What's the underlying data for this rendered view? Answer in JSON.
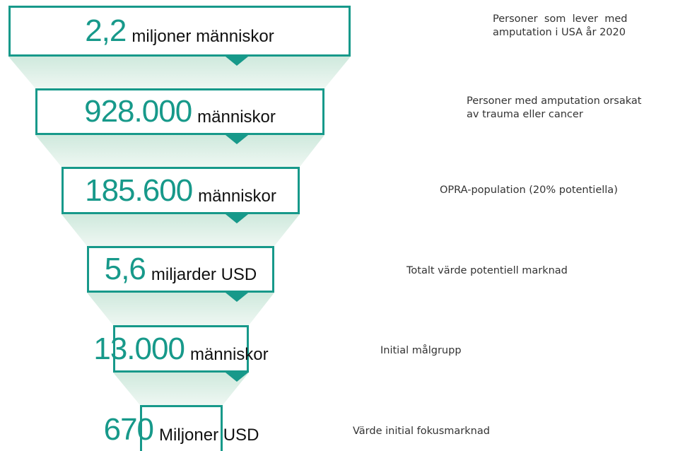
{
  "levels": [
    {
      "number": "2,2",
      "unit": "miljoner människor",
      "description": [
        "Personer  som  lever  med",
        "amputation i USA år 2020"
      ]
    },
    {
      "number": "928.000",
      "unit": "människor",
      "description": [
        "Personer med amputation orsakat",
        "av trauma eller cancer"
      ]
    },
    {
      "number": "185.600",
      "unit": "människor",
      "description": [
        "OPRA-population (20% potentiella)"
      ]
    },
    {
      "number": "5,6",
      "unit": "miljarder USD",
      "description": [
        "Totalt värde potentiell marknad"
      ]
    },
    {
      "number": "13.000",
      "unit": "människor",
      "description": [
        "Initial målgrupp"
      ]
    },
    {
      "number": "670",
      "unit": "Miljoner USD",
      "description": [
        "Värde initial fokusmarknad"
      ]
    }
  ]
}
